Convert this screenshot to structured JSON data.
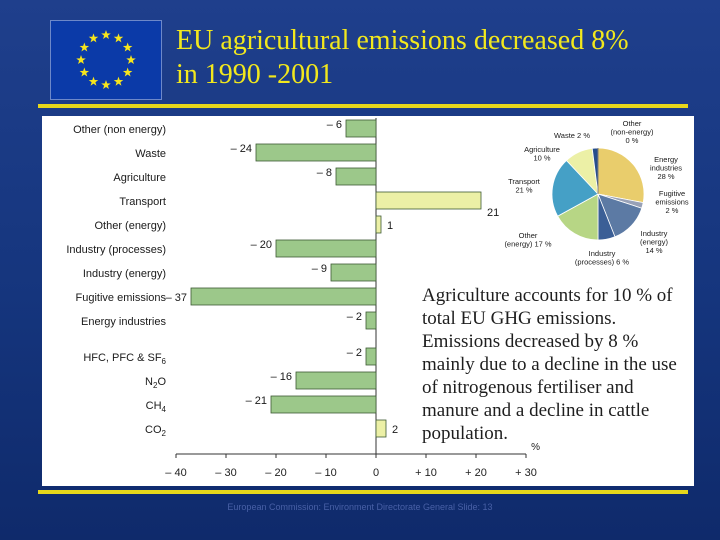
{
  "slide": {
    "title_line1": "EU agricultural emissions decreased 8%",
    "title_line2": "in 1990 -2001",
    "footer": "European Commission: Environment Directorate General Slide: 13",
    "colors": {
      "background": "#1a3a88",
      "title": "#f2e81d",
      "rule": "#e6d71b"
    }
  },
  "paragraph": "Agriculture accounts for 10 % of total EU GHG emissions. Emissions decreased by 8 % mainly due to a decline in the use of nitrogenous fertiliser and manure and a decline in cattle population.",
  "chart_data": [
    {
      "type": "bar",
      "orientation": "horizontal",
      "categories": [
        "Other (non energy)",
        "Waste",
        "Agriculture",
        "Transport",
        "Other (energy)",
        "Industry (processes)",
        "Industry (energy)",
        "Fugitive emissions",
        "Energy industries",
        "HFC, PFC & SF6",
        "N2O",
        "CH4",
        "CO2"
      ],
      "value_labels": [
        "– 6",
        "– 24",
        "– 8",
        "21",
        "1",
        "– 20",
        "– 9",
        "– 37",
        "– 2",
        "– 2",
        "– 16",
        "– 21",
        "2"
      ],
      "values": [
        -6,
        -24,
        -8,
        21,
        1,
        -20,
        -9,
        -37,
        -2,
        -2,
        -16,
        -21,
        2
      ],
      "highlight": [
        "Transport"
      ],
      "unit": "%",
      "xlim": [
        -40,
        30
      ],
      "xticks": [
        "– 40",
        "– 30",
        "– 20",
        "– 10",
        "0",
        "+ 10",
        "+ 20",
        "+ 30"
      ],
      "colors": {
        "negative": "#9cc88a",
        "positive": "#ecf0a6",
        "edge": "#3d5a34"
      }
    },
    {
      "type": "pie",
      "slices": [
        {
          "label": "Energy industries",
          "pct_label": "28 %",
          "value": 28,
          "color": "#e9cd6c"
        },
        {
          "label": "Fugitive emissions",
          "pct_label": "2 %",
          "value": 2,
          "color": "#98a1b7"
        },
        {
          "label": "Industry (energy)",
          "pct_label": "14 %",
          "value": 14,
          "color": "#5c7aa4"
        },
        {
          "label": "Industry (processes)",
          "pct_label": "6 %",
          "value": 6,
          "color": "#3b5f96"
        },
        {
          "label": "Other (energy)",
          "pct_label": "17 %",
          "value": 17,
          "color": "#b7d685"
        },
        {
          "label": "Transport",
          "pct_label": "21 %",
          "value": 21,
          "color": "#45a0c6"
        },
        {
          "label": "Agriculture",
          "pct_label": "10 %",
          "value": 10,
          "color": "#ecf0a6"
        },
        {
          "label": "Waste",
          "pct_label": "2 %",
          "value": 2,
          "color": "#274e8c"
        },
        {
          "label": "Other (non-energy)",
          "pct_label": "0 %",
          "value": 0,
          "color": "#7c7c7c"
        }
      ]
    }
  ]
}
